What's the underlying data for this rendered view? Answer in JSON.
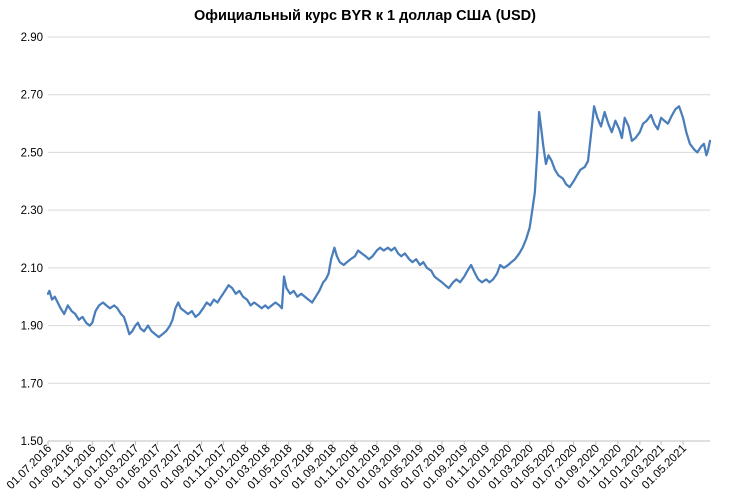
{
  "chart_data": {
    "type": "line",
    "title": "Официальный курс BYR к 1 доллар США (USD)",
    "xlabel": "",
    "ylabel": "",
    "ylim": [
      1.5,
      2.9
    ],
    "y_ticks": [
      "1.50",
      "1.70",
      "1.90",
      "2.10",
      "2.30",
      "2.50",
      "2.70",
      "2.90"
    ],
    "x_range": [
      "2016-07-01",
      "2021-07-15"
    ],
    "x_tick_labels": [
      "01.07.2016",
      "01.09.2016",
      "01.11.2016",
      "01.01.2017",
      "01.03.2017",
      "01.05.2017",
      "01.07.2017",
      "01.09.2017",
      "01.11.2017",
      "01.01.2018",
      "01.03.2018",
      "01.05.2018",
      "01.07.2018",
      "01.09.2018",
      "01.11.2018",
      "01.01.2019",
      "01.03.2019",
      "01.05.2019",
      "01.07.2019",
      "01.09.2019",
      "01.11.2019",
      "01.01.2020",
      "01.03.2020",
      "01.05.2020",
      "01.07.2020",
      "01.09.2020",
      "01.11.2020",
      "01.01.2021",
      "01.03.2021",
      "01.05.2021"
    ],
    "grid": "horizontal",
    "legend": "none",
    "color": "#4a7ebb",
    "series": [
      {
        "points": [
          [
            "2016-07-01",
            2.01
          ],
          [
            "2016-07-05",
            2.02
          ],
          [
            "2016-07-12",
            1.99
          ],
          [
            "2016-07-20",
            2.0
          ],
          [
            "2016-07-28",
            1.98
          ],
          [
            "2016-08-05",
            1.96
          ],
          [
            "2016-08-15",
            1.94
          ],
          [
            "2016-08-25",
            1.97
          ],
          [
            "2016-09-05",
            1.95
          ],
          [
            "2016-09-15",
            1.94
          ],
          [
            "2016-09-25",
            1.92
          ],
          [
            "2016-10-05",
            1.93
          ],
          [
            "2016-10-15",
            1.91
          ],
          [
            "2016-10-25",
            1.9
          ],
          [
            "2016-11-01",
            1.91
          ],
          [
            "2016-11-10",
            1.95
          ],
          [
            "2016-11-20",
            1.97
          ],
          [
            "2016-12-01",
            1.98
          ],
          [
            "2016-12-10",
            1.97
          ],
          [
            "2016-12-20",
            1.96
          ],
          [
            "2017-01-01",
            1.97
          ],
          [
            "2017-01-10",
            1.96
          ],
          [
            "2017-01-20",
            1.94
          ],
          [
            "2017-01-28",
            1.93
          ],
          [
            "2017-02-05",
            1.9
          ],
          [
            "2017-02-12",
            1.87
          ],
          [
            "2017-02-20",
            1.88
          ],
          [
            "2017-03-01",
            1.9
          ],
          [
            "2017-03-08",
            1.91
          ],
          [
            "2017-03-15",
            1.89
          ],
          [
            "2017-03-25",
            1.88
          ],
          [
            "2017-04-05",
            1.9
          ],
          [
            "2017-04-15",
            1.88
          ],
          [
            "2017-04-25",
            1.87
          ],
          [
            "2017-05-05",
            1.86
          ],
          [
            "2017-05-15",
            1.87
          ],
          [
            "2017-05-25",
            1.88
          ],
          [
            "2017-06-05",
            1.9
          ],
          [
            "2017-06-12",
            1.92
          ],
          [
            "2017-06-20",
            1.96
          ],
          [
            "2017-06-28",
            1.98
          ],
          [
            "2017-07-05",
            1.96
          ],
          [
            "2017-07-15",
            1.95
          ],
          [
            "2017-07-25",
            1.94
          ],
          [
            "2017-08-05",
            1.95
          ],
          [
            "2017-08-15",
            1.93
          ],
          [
            "2017-08-25",
            1.94
          ],
          [
            "2017-09-05",
            1.96
          ],
          [
            "2017-09-15",
            1.98
          ],
          [
            "2017-09-25",
            1.97
          ],
          [
            "2017-10-05",
            1.99
          ],
          [
            "2017-10-15",
            1.98
          ],
          [
            "2017-10-25",
            2.0
          ],
          [
            "2017-11-05",
            2.02
          ],
          [
            "2017-11-15",
            2.04
          ],
          [
            "2017-11-25",
            2.03
          ],
          [
            "2017-12-05",
            2.01
          ],
          [
            "2017-12-15",
            2.02
          ],
          [
            "2017-12-25",
            2.0
          ],
          [
            "2018-01-05",
            1.99
          ],
          [
            "2018-01-15",
            1.97
          ],
          [
            "2018-01-25",
            1.98
          ],
          [
            "2018-02-05",
            1.97
          ],
          [
            "2018-02-15",
            1.96
          ],
          [
            "2018-02-25",
            1.97
          ],
          [
            "2018-03-05",
            1.96
          ],
          [
            "2018-03-15",
            1.97
          ],
          [
            "2018-03-25",
            1.98
          ],
          [
            "2018-04-05",
            1.97
          ],
          [
            "2018-04-12",
            1.96
          ],
          [
            "2018-04-18",
            2.07
          ],
          [
            "2018-04-25",
            2.03
          ],
          [
            "2018-05-05",
            2.01
          ],
          [
            "2018-05-15",
            2.02
          ],
          [
            "2018-05-25",
            2.0
          ],
          [
            "2018-06-05",
            2.01
          ],
          [
            "2018-06-15",
            2.0
          ],
          [
            "2018-06-25",
            1.99
          ],
          [
            "2018-07-05",
            1.98
          ],
          [
            "2018-07-15",
            2.0
          ],
          [
            "2018-07-25",
            2.02
          ],
          [
            "2018-08-05",
            2.05
          ],
          [
            "2018-08-12",
            2.06
          ],
          [
            "2018-08-20",
            2.08
          ],
          [
            "2018-08-27",
            2.13
          ],
          [
            "2018-09-05",
            2.17
          ],
          [
            "2018-09-12",
            2.14
          ],
          [
            "2018-09-20",
            2.12
          ],
          [
            "2018-10-01",
            2.11
          ],
          [
            "2018-10-10",
            2.12
          ],
          [
            "2018-10-20",
            2.13
          ],
          [
            "2018-11-01",
            2.14
          ],
          [
            "2018-11-10",
            2.16
          ],
          [
            "2018-11-20",
            2.15
          ],
          [
            "2018-12-01",
            2.14
          ],
          [
            "2018-12-10",
            2.13
          ],
          [
            "2018-12-20",
            2.14
          ],
          [
            "2019-01-01",
            2.16
          ],
          [
            "2019-01-10",
            2.17
          ],
          [
            "2019-01-20",
            2.16
          ],
          [
            "2019-02-01",
            2.17
          ],
          [
            "2019-02-10",
            2.16
          ],
          [
            "2019-02-20",
            2.17
          ],
          [
            "2019-03-01",
            2.15
          ],
          [
            "2019-03-10",
            2.14
          ],
          [
            "2019-03-20",
            2.15
          ],
          [
            "2019-04-01",
            2.13
          ],
          [
            "2019-04-10",
            2.12
          ],
          [
            "2019-04-20",
            2.13
          ],
          [
            "2019-05-01",
            2.11
          ],
          [
            "2019-05-10",
            2.12
          ],
          [
            "2019-05-20",
            2.1
          ],
          [
            "2019-06-01",
            2.09
          ],
          [
            "2019-06-10",
            2.07
          ],
          [
            "2019-06-20",
            2.06
          ],
          [
            "2019-07-01",
            2.05
          ],
          [
            "2019-07-10",
            2.04
          ],
          [
            "2019-07-20",
            2.03
          ],
          [
            "2019-08-01",
            2.05
          ],
          [
            "2019-08-10",
            2.06
          ],
          [
            "2019-08-20",
            2.05
          ],
          [
            "2019-09-01",
            2.07
          ],
          [
            "2019-09-10",
            2.09
          ],
          [
            "2019-09-20",
            2.11
          ],
          [
            "2019-10-01",
            2.08
          ],
          [
            "2019-10-10",
            2.06
          ],
          [
            "2019-10-20",
            2.05
          ],
          [
            "2019-11-01",
            2.06
          ],
          [
            "2019-11-10",
            2.05
          ],
          [
            "2019-11-20",
            2.06
          ],
          [
            "2019-12-01",
            2.08
          ],
          [
            "2019-12-10",
            2.11
          ],
          [
            "2019-12-20",
            2.1
          ],
          [
            "2020-01-01",
            2.11
          ],
          [
            "2020-01-10",
            2.12
          ],
          [
            "2020-01-20",
            2.13
          ],
          [
            "2020-02-01",
            2.15
          ],
          [
            "2020-02-10",
            2.17
          ],
          [
            "2020-02-20",
            2.2
          ],
          [
            "2020-03-01",
            2.24
          ],
          [
            "2020-03-08",
            2.3
          ],
          [
            "2020-03-15",
            2.36
          ],
          [
            "2020-03-22",
            2.5
          ],
          [
            "2020-03-27",
            2.64
          ],
          [
            "2020-04-02",
            2.58
          ],
          [
            "2020-04-08",
            2.52
          ],
          [
            "2020-04-15",
            2.46
          ],
          [
            "2020-04-22",
            2.49
          ],
          [
            "2020-05-01",
            2.47
          ],
          [
            "2020-05-10",
            2.44
          ],
          [
            "2020-05-20",
            2.42
          ],
          [
            "2020-06-01",
            2.41
          ],
          [
            "2020-06-10",
            2.39
          ],
          [
            "2020-06-20",
            2.38
          ],
          [
            "2020-07-01",
            2.4
          ],
          [
            "2020-07-10",
            2.42
          ],
          [
            "2020-07-20",
            2.44
          ],
          [
            "2020-08-01",
            2.45
          ],
          [
            "2020-08-10",
            2.47
          ],
          [
            "2020-08-20",
            2.58
          ],
          [
            "2020-08-27",
            2.66
          ],
          [
            "2020-09-05",
            2.62
          ],
          [
            "2020-09-15",
            2.59
          ],
          [
            "2020-09-25",
            2.64
          ],
          [
            "2020-10-05",
            2.6
          ],
          [
            "2020-10-15",
            2.57
          ],
          [
            "2020-10-25",
            2.61
          ],
          [
            "2020-11-05",
            2.58
          ],
          [
            "2020-11-12",
            2.55
          ],
          [
            "2020-11-20",
            2.62
          ],
          [
            "2020-12-01",
            2.59
          ],
          [
            "2020-12-10",
            2.54
          ],
          [
            "2020-12-20",
            2.55
          ],
          [
            "2021-01-01",
            2.57
          ],
          [
            "2021-01-10",
            2.6
          ],
          [
            "2021-01-20",
            2.61
          ],
          [
            "2021-02-01",
            2.63
          ],
          [
            "2021-02-10",
            2.6
          ],
          [
            "2021-02-20",
            2.58
          ],
          [
            "2021-03-01",
            2.62
          ],
          [
            "2021-03-10",
            2.61
          ],
          [
            "2021-03-20",
            2.6
          ],
          [
            "2021-04-01",
            2.63
          ],
          [
            "2021-04-10",
            2.65
          ],
          [
            "2021-04-20",
            2.66
          ],
          [
            "2021-05-01",
            2.62
          ],
          [
            "2021-05-10",
            2.57
          ],
          [
            "2021-05-20",
            2.53
          ],
          [
            "2021-06-01",
            2.51
          ],
          [
            "2021-06-10",
            2.5
          ],
          [
            "2021-06-20",
            2.52
          ],
          [
            "2021-06-28",
            2.53
          ],
          [
            "2021-07-05",
            2.49
          ],
          [
            "2021-07-10",
            2.51
          ],
          [
            "2021-07-15",
            2.54
          ]
        ]
      }
    ]
  }
}
